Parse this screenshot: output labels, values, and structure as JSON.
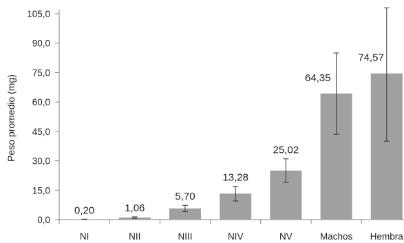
{
  "colors": {
    "bar": "#a0a0a0",
    "axis": "#808080",
    "error_bar": "#333333",
    "text": "#222222"
  },
  "chart_data": {
    "type": "bar",
    "title": "",
    "xlabel": "",
    "ylabel": "Peso promedio (mg)",
    "ylim": [
      0,
      105
    ],
    "yticks": [
      0,
      15,
      30,
      45,
      60,
      75,
      90,
      105
    ],
    "ytick_labels": [
      "0,0",
      "15,0",
      "30,0",
      "45,0",
      "60,0",
      "75,0",
      "90,0",
      "105,0"
    ],
    "grid": false,
    "legend": "none",
    "categories": [
      "NI",
      "NII",
      "NIII",
      "NIV",
      "NV",
      "Machos",
      "Hembra"
    ],
    "values": [
      0.2,
      1.06,
      5.7,
      13.28,
      25.02,
      64.35,
      74.57
    ],
    "value_labels": [
      "0,20",
      "1,06",
      "5,70",
      "13,28",
      "25,02",
      "64,35",
      "74,57"
    ],
    "error_low": [
      0.15,
      0.7,
      4.0,
      9.5,
      19.0,
      43.5,
      40.0
    ],
    "error_high": [
      0.25,
      1.4,
      7.3,
      17.0,
      31.0,
      85.0,
      108.0
    ]
  }
}
